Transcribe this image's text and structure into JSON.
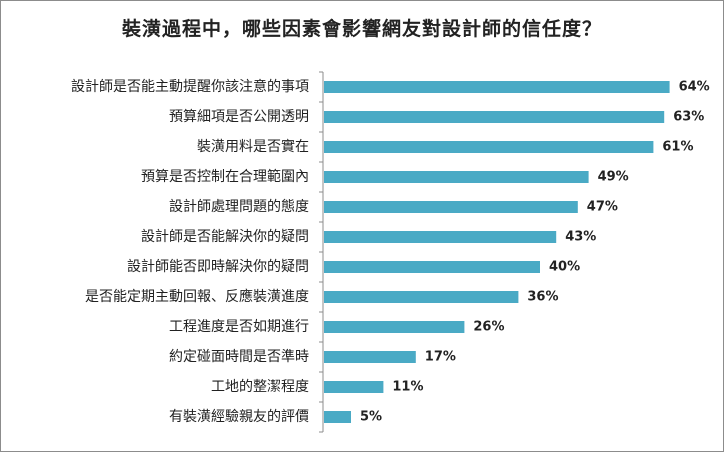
{
  "chart_data": {
    "type": "bar",
    "orientation": "horizontal",
    "title": "裝潢過程中，哪些因素會影響網友對設計師的信任度？",
    "xlabel": "",
    "ylabel": "",
    "xlim": [
      0,
      70
    ],
    "grid": false,
    "legend": "none",
    "bar_color": "#4aaac5",
    "categories": [
      "設計師是否能主動提醒你該注意的事項",
      "預算細項是否公開透明",
      "裝潢用料是否實在",
      "預算是否控制在合理範圍內",
      "設計師處理問題的態度",
      "設計師是否能解決你的疑問",
      "設計師能否即時解決你的疑問",
      "是否能定期主動回報、反應裝潢進度",
      "工程進度是否如期進行",
      "約定碰面時間是否準時",
      "工地的整潔程度",
      "有裝潢經驗親友的評價"
    ],
    "values": [
      64,
      63,
      61,
      49,
      47,
      43,
      40,
      36,
      26,
      17,
      11,
      5
    ],
    "value_labels": [
      "64%",
      "63%",
      "61%",
      "49%",
      "47%",
      "43%",
      "40%",
      "36%",
      "26%",
      "17%",
      "11%",
      "5%"
    ]
  }
}
